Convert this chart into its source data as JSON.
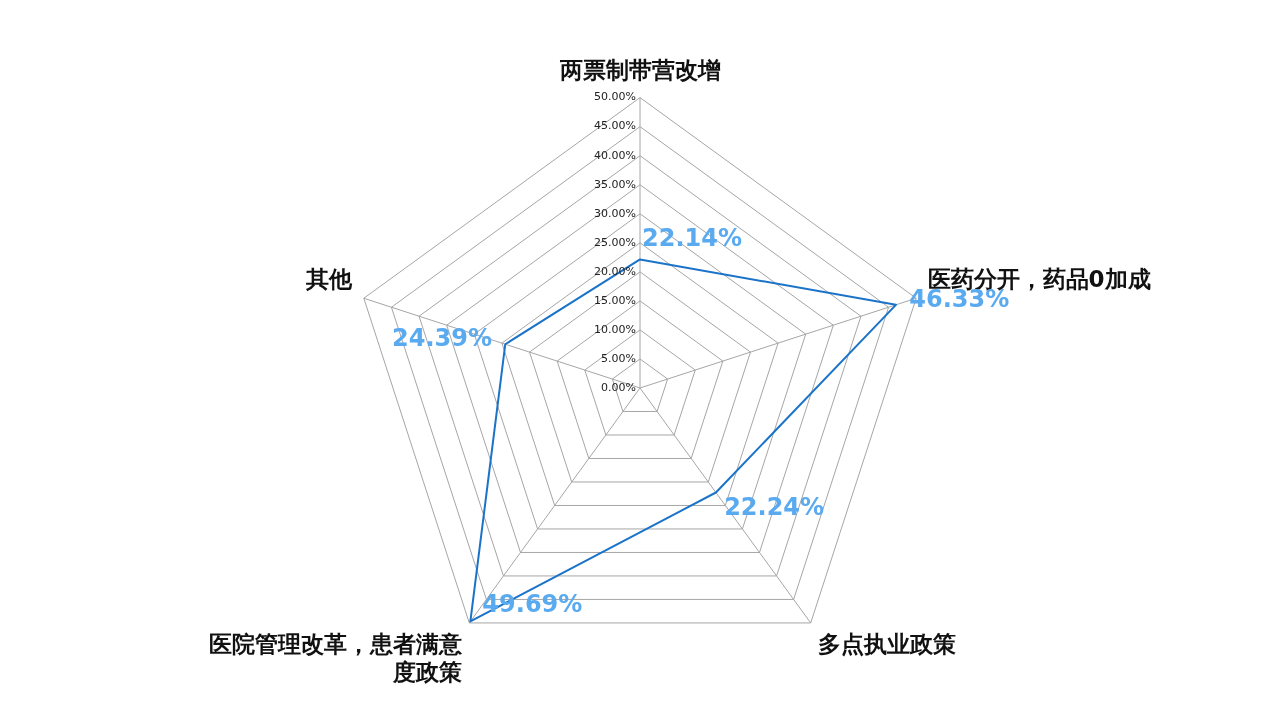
{
  "chart_data": {
    "type": "radar",
    "categories": [
      "两票制带营改增",
      "医药分开，药品0加成",
      "多点执业政策",
      "医院管理改革，患者满意度政策",
      "其他"
    ],
    "series": [
      {
        "color": "#1a73c9",
        "values": [
          22.14,
          46.33,
          22.24,
          49.69,
          24.39
        ],
        "value_labels": [
          "22.14%",
          "46.33%",
          "22.24%",
          "49.69%",
          "24.39%"
        ]
      }
    ],
    "ylim": [
      0,
      50
    ],
    "yticks": [
      {
        "value": 0,
        "label": "0.00%"
      },
      {
        "value": 5,
        "label": "5.00%"
      },
      {
        "value": 10,
        "label": "10.00%"
      },
      {
        "value": 15,
        "label": "15.00%"
      },
      {
        "value": 20,
        "label": "20.00%"
      },
      {
        "value": 25,
        "label": "25.00%"
      },
      {
        "value": 30,
        "label": "30.00%"
      },
      {
        "value": 35,
        "label": "35.00%"
      },
      {
        "value": 40,
        "label": "40.00%"
      },
      {
        "value": 45,
        "label": "45.00%"
      },
      {
        "value": 50,
        "label": "50.00%"
      }
    ],
    "grid": true,
    "legend": false,
    "marker": "none"
  }
}
